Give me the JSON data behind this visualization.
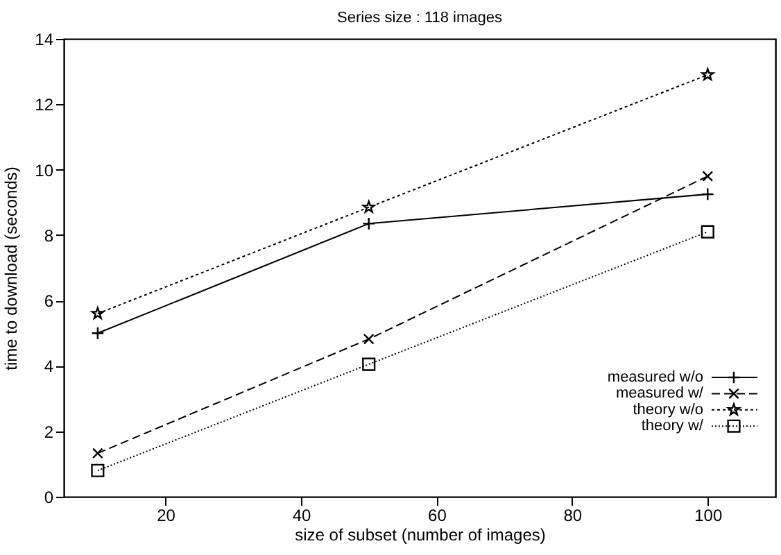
{
  "chart_data": {
    "type": "line",
    "title": "Series size : 118 images",
    "xlabel": "size of subset (number of images)",
    "ylabel": "time to download (seconds)",
    "x": [
      10,
      50,
      100
    ],
    "series": [
      {
        "name": "measured w/o",
        "color": "#000000",
        "values": [
          5.0,
          8.35,
          9.25
        ],
        "marker": "cross",
        "line_style": "solid"
      },
      {
        "name": "measured w/",
        "color": "#000000",
        "values": [
          1.33,
          4.82,
          9.8
        ],
        "marker": "x",
        "line_style": "dashed"
      },
      {
        "name": "theory w/o",
        "color": "#000000",
        "values": [
          5.6,
          8.85,
          12.9
        ],
        "marker": "star",
        "line_style": "dotted"
      },
      {
        "name": "theory w/",
        "color": "#000000",
        "values": [
          0.8,
          4.05,
          8.1
        ],
        "marker": "square",
        "line_style": "dotted"
      }
    ],
    "xlim": [
      5,
      110
    ],
    "xticks": [
      20,
      40,
      60,
      80,
      100
    ],
    "ylim": [
      0,
      14
    ],
    "yticks": [
      0,
      2,
      4,
      6,
      8,
      10,
      12,
      14
    ],
    "grid": false,
    "legend": "right"
  }
}
